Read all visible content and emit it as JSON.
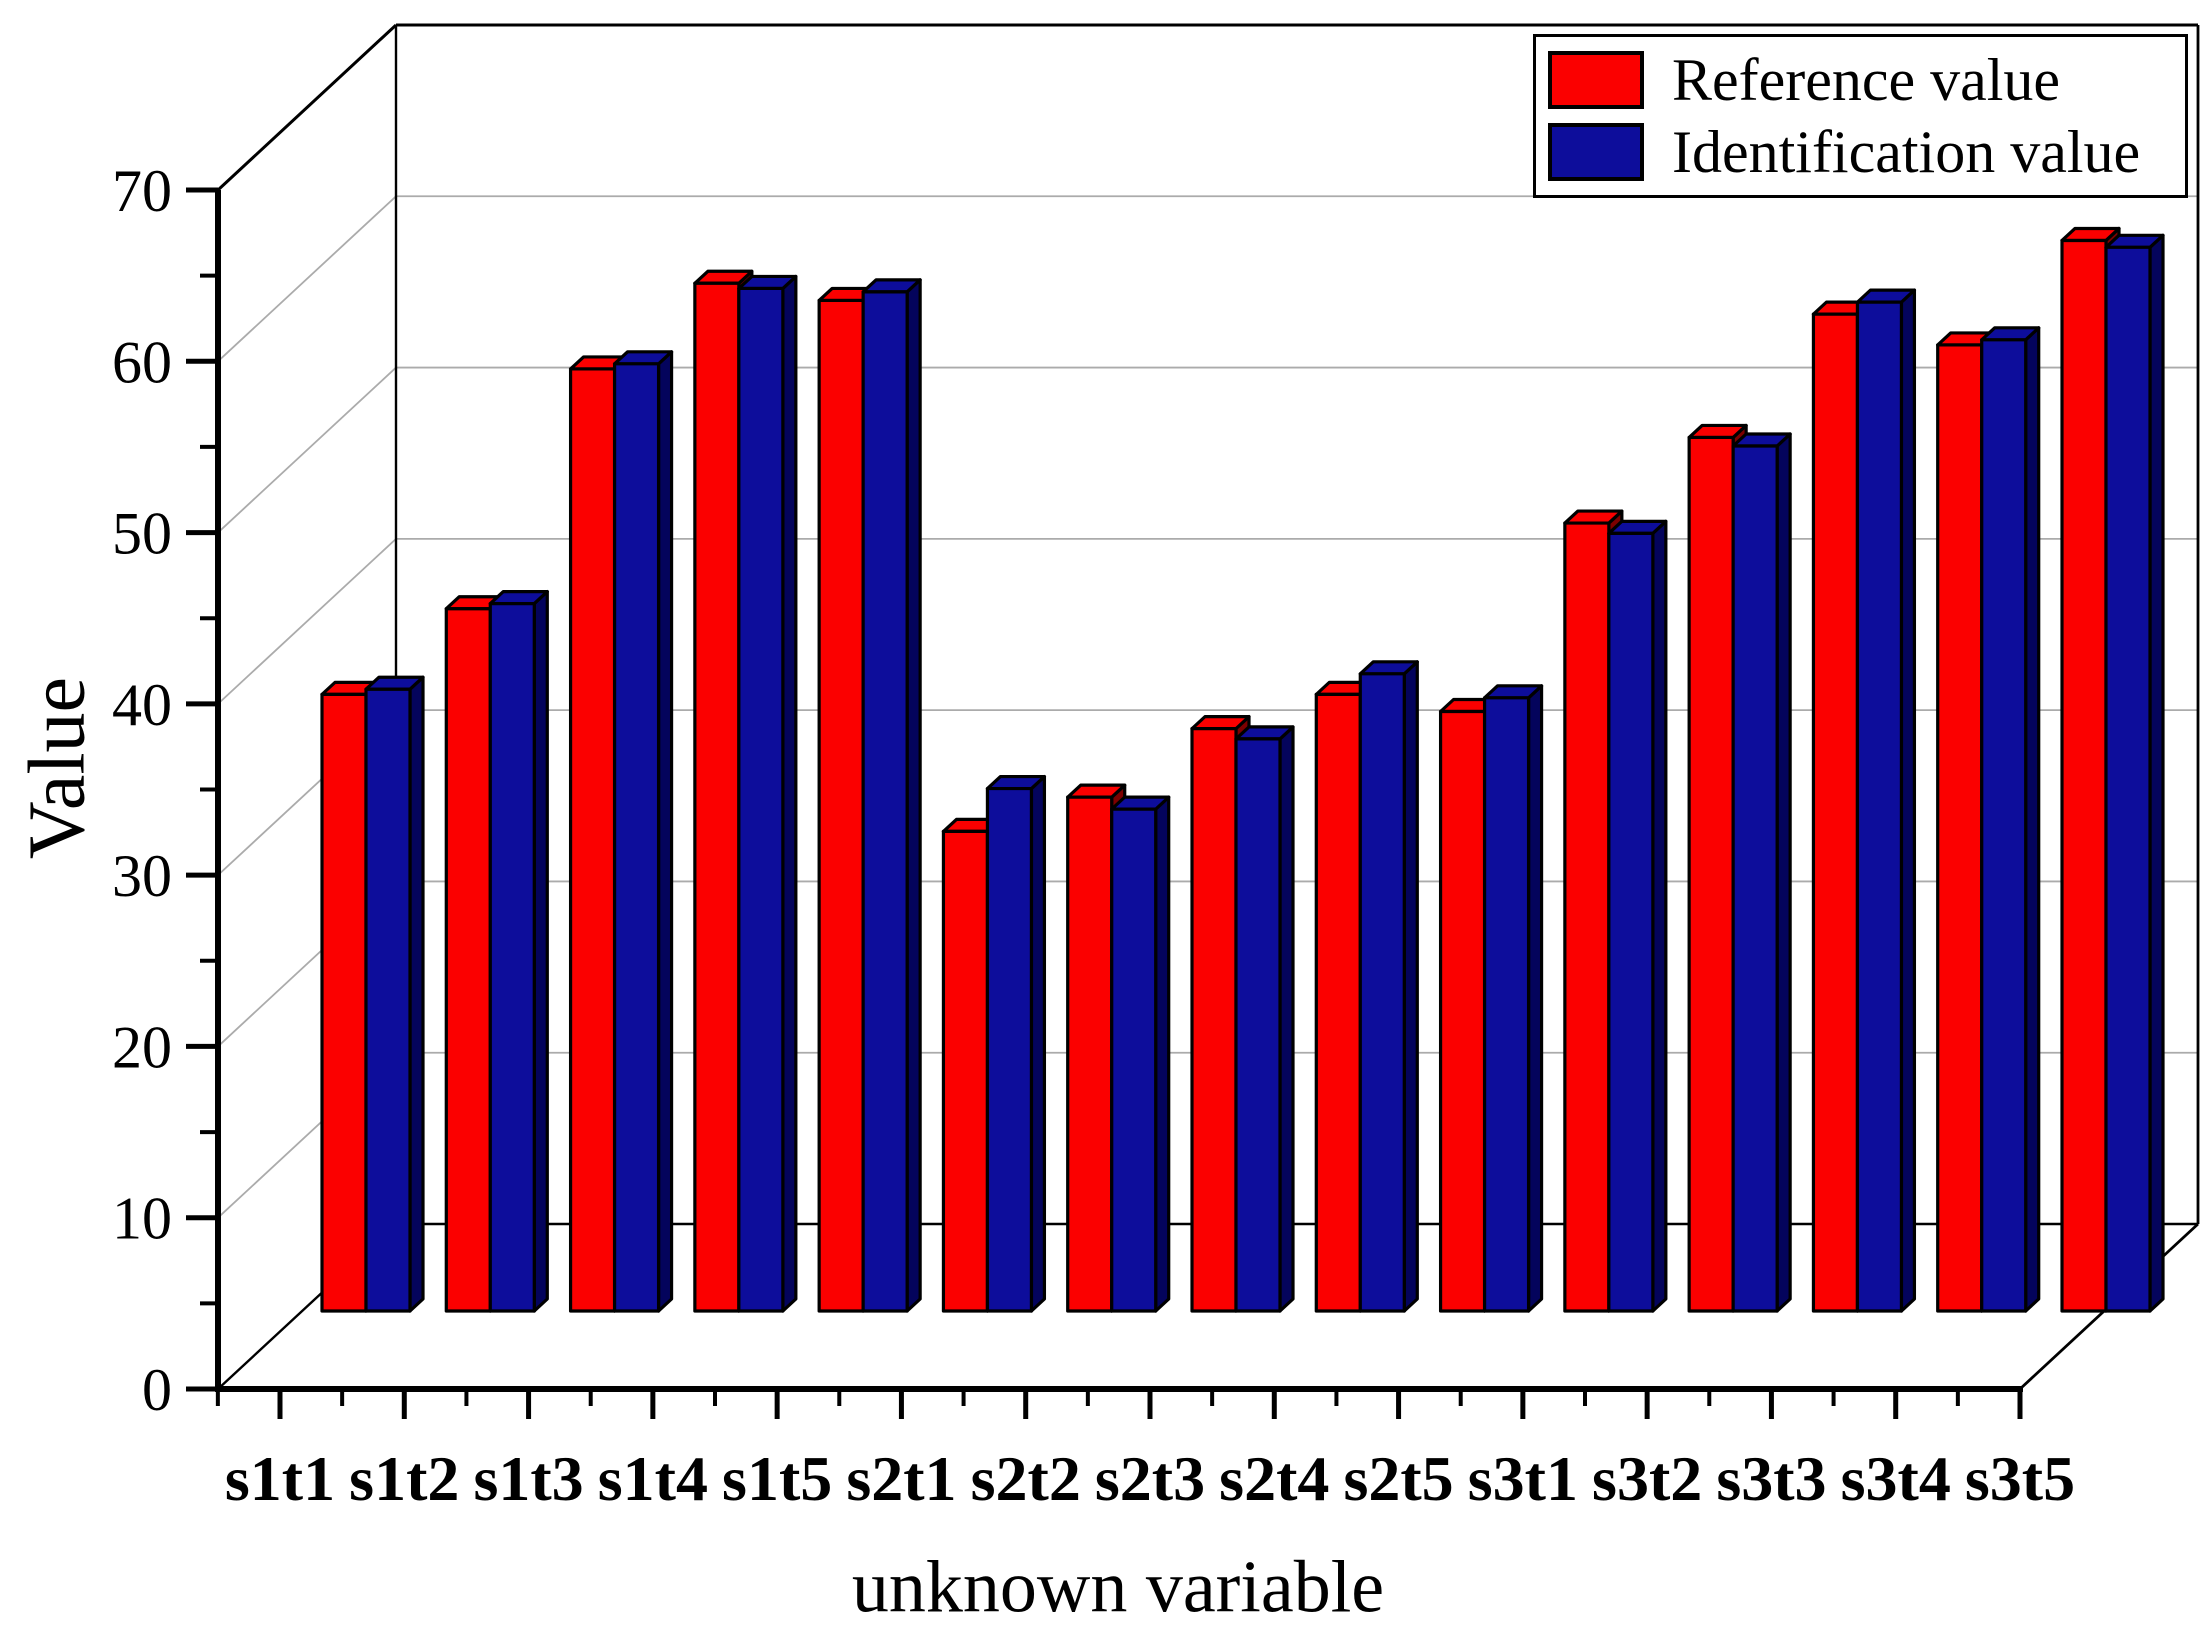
{
  "chart_data": {
    "type": "bar",
    "style": "3d-column",
    "title": "",
    "xlabel": "unknown variable",
    "ylabel": "Value",
    "categories": [
      "s1t1",
      "s1t2",
      "s1t3",
      "s1t4",
      "s1t5",
      "s2t1",
      "s2t2",
      "s2t3",
      "s2t4",
      "s2t5",
      "s3t1",
      "s3t2",
      "s3t3",
      "s3t4",
      "s3t5"
    ],
    "series": [
      {
        "name": "Reference value",
        "color": "#fb0000",
        "side_color": "#7c0000",
        "edge_color": "#000000",
        "values": [
          36.0,
          41.0,
          55.0,
          60.0,
          59.0,
          28.0,
          30.0,
          34.0,
          36.0,
          35.0,
          46.0,
          51.0,
          58.2,
          56.4,
          62.5
        ]
      },
      {
        "name": "Identification value",
        "color": "#0d0d9b",
        "side_color": "#04045c",
        "edge_color": "#000000",
        "values": [
          36.3,
          41.3,
          55.3,
          59.7,
          59.5,
          30.5,
          29.3,
          33.4,
          37.2,
          35.8,
          45.4,
          50.5,
          58.9,
          56.7,
          62.1
        ]
      }
    ],
    "ylim": [
      0,
      70
    ],
    "yticks": [
      0,
      10,
      20,
      30,
      40,
      50,
      60,
      70
    ],
    "ytick_minor_step": 5,
    "grid": true,
    "grid_color": "#ababab",
    "legend": {
      "position": "top-right",
      "labels": [
        "Reference value",
        "Identification value"
      ]
    }
  }
}
